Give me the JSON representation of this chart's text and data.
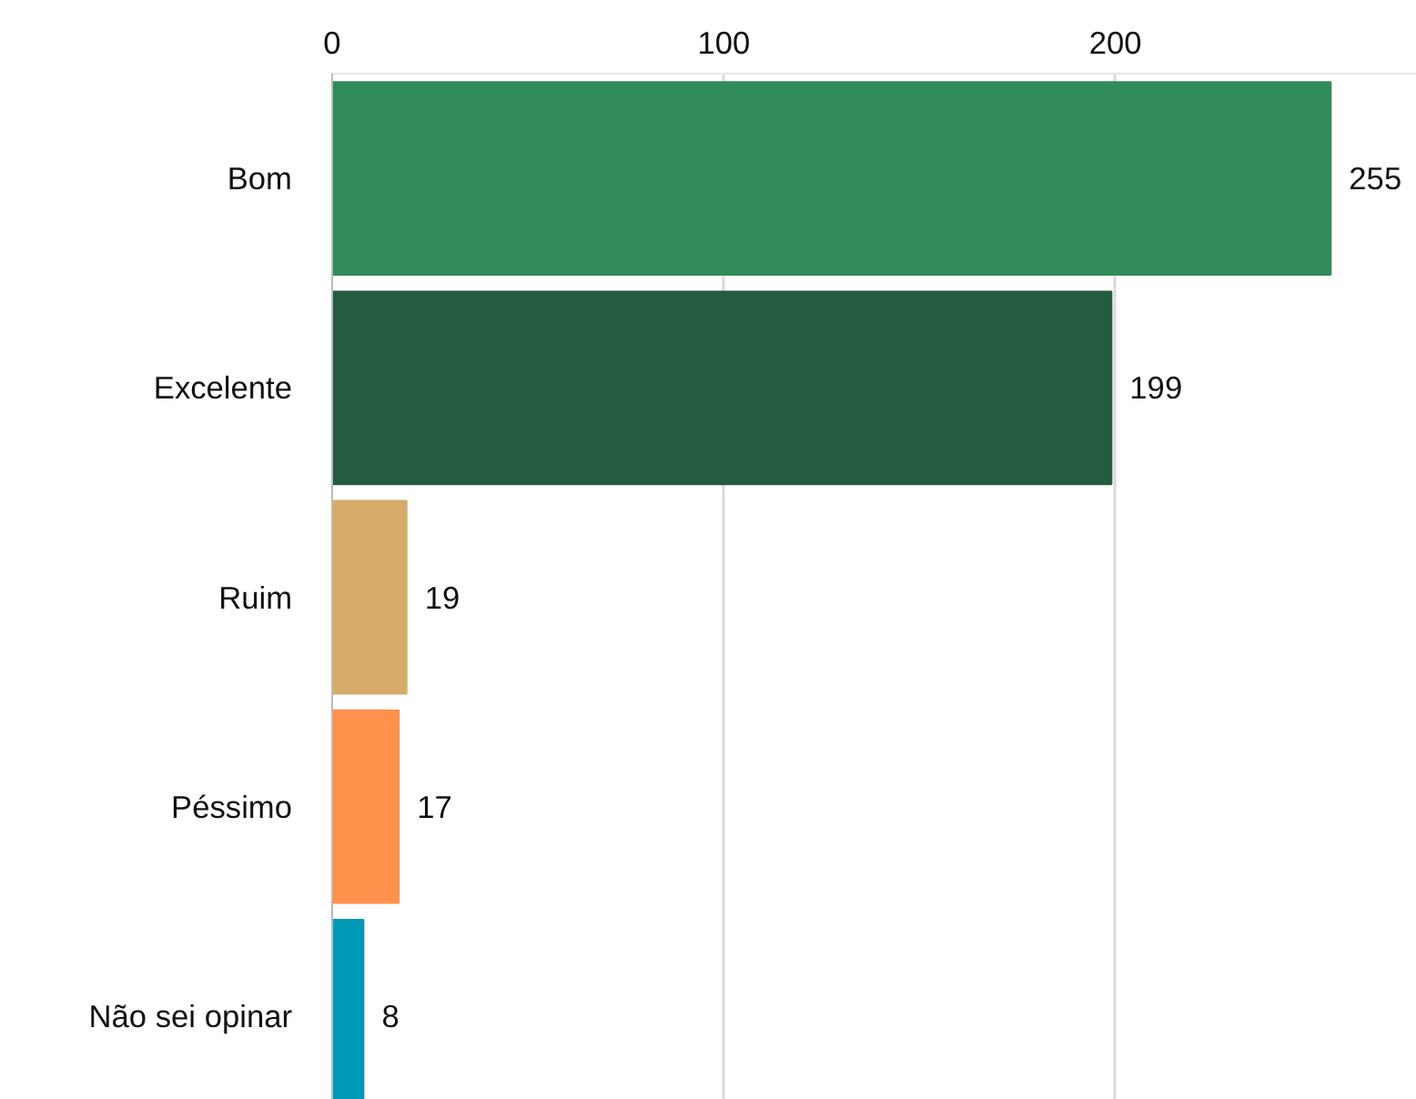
{
  "chart_data": {
    "type": "bar",
    "orientation": "horizontal",
    "categories": [
      "Bom",
      "Excelente",
      "Ruim",
      "Péssimo",
      "Não sei opinar"
    ],
    "values": [
      255,
      199,
      19,
      17,
      8
    ],
    "colors": [
      "#318c59",
      "#255b3e",
      "#d6ab69",
      "#ff914d",
      "#0099b5"
    ],
    "xlim": [
      0,
      277
    ],
    "xticks": [
      0,
      100,
      200
    ],
    "grid": "x",
    "data_labels": true
  }
}
